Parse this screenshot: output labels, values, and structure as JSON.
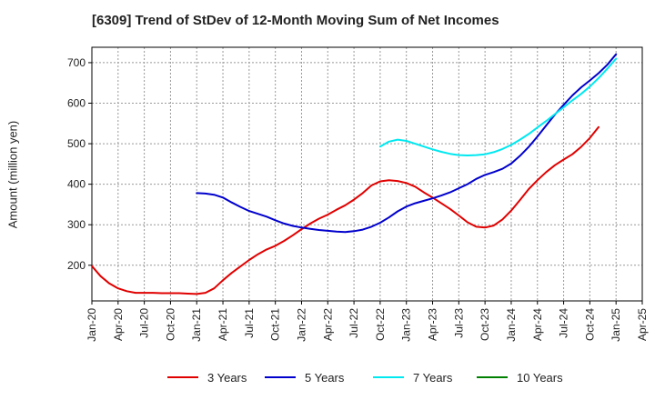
{
  "chart_data": {
    "type": "line",
    "title": "[6309]  Trend of StDev of 12-Month Moving Sum of Net Incomes",
    "ylabel": "Amount (million yen)",
    "xlabel": "",
    "x_ticks": [
      "Jan-20",
      "Apr-20",
      "Jul-20",
      "Oct-20",
      "Jan-21",
      "Apr-21",
      "Jul-21",
      "Oct-21",
      "Jan-22",
      "Apr-22",
      "Jul-22",
      "Oct-22",
      "Jan-23",
      "Apr-23",
      "Jul-23",
      "Oct-23",
      "Jan-24",
      "Apr-24",
      "Jul-24",
      "Oct-24",
      "Jan-25",
      "Apr-25"
    ],
    "y_ticks": [
      200,
      300,
      400,
      500,
      600,
      700
    ],
    "ylim": [
      112,
      738
    ],
    "grid": true,
    "legend_position": "bottom",
    "series": [
      {
        "name": "3 Years",
        "color": "#e00000",
        "points": [
          [
            "Jan-20",
            198
          ],
          [
            "Feb-20",
            173
          ],
          [
            "Mar-20",
            155
          ],
          [
            "Apr-20",
            143
          ],
          [
            "May-20",
            136
          ],
          [
            "Jun-20",
            132
          ],
          [
            "Jul-20",
            132
          ],
          [
            "Aug-20",
            132
          ],
          [
            "Sep-20",
            131
          ],
          [
            "Oct-20",
            131
          ],
          [
            "Nov-20",
            131
          ],
          [
            "Dec-20",
            130
          ],
          [
            "Jan-21",
            129
          ],
          [
            "Feb-21",
            132
          ],
          [
            "Mar-21",
            143
          ],
          [
            "Apr-21",
            163
          ],
          [
            "May-21",
            181
          ],
          [
            "Jun-21",
            197
          ],
          [
            "Jul-21",
            213
          ],
          [
            "Aug-21",
            227
          ],
          [
            "Sep-21",
            239
          ],
          [
            "Oct-21",
            248
          ],
          [
            "Nov-21",
            260
          ],
          [
            "Dec-21",
            274
          ],
          [
            "Jan-22",
            289
          ],
          [
            "Feb-22",
            303
          ],
          [
            "Mar-22",
            315
          ],
          [
            "Apr-22",
            325
          ],
          [
            "May-22",
            337
          ],
          [
            "Jun-22",
            348
          ],
          [
            "Jul-22",
            362
          ],
          [
            "Aug-22",
            378
          ],
          [
            "Sep-22",
            397
          ],
          [
            "Oct-22",
            407
          ],
          [
            "Nov-22",
            410
          ],
          [
            "Dec-22",
            408
          ],
          [
            "Jan-23",
            403
          ],
          [
            "Feb-23",
            394
          ],
          [
            "Mar-23",
            380
          ],
          [
            "Apr-23",
            367
          ],
          [
            "May-23",
            353
          ],
          [
            "Jun-23",
            339
          ],
          [
            "Jul-23",
            323
          ],
          [
            "Aug-23",
            306
          ],
          [
            "Sep-23",
            295
          ],
          [
            "Oct-23",
            293
          ],
          [
            "Nov-23",
            298
          ],
          [
            "Dec-23",
            313
          ],
          [
            "Jan-24",
            335
          ],
          [
            "Feb-24",
            361
          ],
          [
            "Mar-24",
            388
          ],
          [
            "Apr-24",
            410
          ],
          [
            "May-24",
            430
          ],
          [
            "Jun-24",
            447
          ],
          [
            "Jul-24",
            461
          ],
          [
            "Aug-24",
            474
          ],
          [
            "Sep-24",
            492
          ],
          [
            "Oct-24",
            514
          ],
          [
            "Nov-24",
            541
          ]
        ]
      },
      {
        "name": "5 Years",
        "color": "#0000cc",
        "points": [
          [
            "Jan-21",
            378
          ],
          [
            "Feb-21",
            377
          ],
          [
            "Mar-21",
            374
          ],
          [
            "Apr-21",
            367
          ],
          [
            "May-21",
            355
          ],
          [
            "Jun-21",
            344
          ],
          [
            "Jul-21",
            334
          ],
          [
            "Aug-21",
            327
          ],
          [
            "Sep-21",
            320
          ],
          [
            "Oct-21",
            311
          ],
          [
            "Nov-21",
            303
          ],
          [
            "Dec-21",
            297
          ],
          [
            "Jan-22",
            293
          ],
          [
            "Feb-22",
            290
          ],
          [
            "Mar-22",
            287
          ],
          [
            "Apr-22",
            285
          ],
          [
            "May-22",
            283
          ],
          [
            "Jun-22",
            282
          ],
          [
            "Jul-22",
            284
          ],
          [
            "Aug-22",
            288
          ],
          [
            "Sep-22",
            295
          ],
          [
            "Oct-22",
            305
          ],
          [
            "Nov-22",
            318
          ],
          [
            "Dec-22",
            333
          ],
          [
            "Jan-23",
            345
          ],
          [
            "Feb-23",
            353
          ],
          [
            "Mar-23",
            359
          ],
          [
            "Apr-23",
            365
          ],
          [
            "May-23",
            372
          ],
          [
            "Jun-23",
            380
          ],
          [
            "Jul-23",
            390
          ],
          [
            "Aug-23",
            400
          ],
          [
            "Sep-23",
            413
          ],
          [
            "Oct-23",
            423
          ],
          [
            "Nov-23",
            430
          ],
          [
            "Dec-23",
            438
          ],
          [
            "Jan-24",
            451
          ],
          [
            "Feb-24",
            470
          ],
          [
            "Mar-24",
            492
          ],
          [
            "Apr-24",
            518
          ],
          [
            "May-24",
            545
          ],
          [
            "Jun-24",
            572
          ],
          [
            "Jul-24",
            596
          ],
          [
            "Aug-24",
            619
          ],
          [
            "Sep-24",
            639
          ],
          [
            "Oct-24",
            656
          ],
          [
            "Nov-24",
            674
          ],
          [
            "Dec-24",
            695
          ],
          [
            "Jan-25",
            721
          ]
        ]
      },
      {
        "name": "7 Years",
        "color": "#00e8f0",
        "points": [
          [
            "Oct-22",
            493
          ],
          [
            "Nov-22",
            505
          ],
          [
            "Dec-22",
            510
          ],
          [
            "Jan-23",
            507
          ],
          [
            "Feb-23",
            500
          ],
          [
            "Mar-23",
            493
          ],
          [
            "Apr-23",
            486
          ],
          [
            "May-23",
            480
          ],
          [
            "Jun-23",
            475
          ],
          [
            "Jul-23",
            472
          ],
          [
            "Aug-23",
            471
          ],
          [
            "Sep-23",
            472
          ],
          [
            "Oct-23",
            474
          ],
          [
            "Nov-23",
            479
          ],
          [
            "Dec-23",
            487
          ],
          [
            "Jan-24",
            497
          ],
          [
            "Feb-24",
            510
          ],
          [
            "Mar-24",
            524
          ],
          [
            "Apr-24",
            540
          ],
          [
            "May-24",
            556
          ],
          [
            "Jun-24",
            573
          ],
          [
            "Jul-24",
            590
          ],
          [
            "Aug-24",
            607
          ],
          [
            "Sep-24",
            623
          ],
          [
            "Oct-24",
            641
          ],
          [
            "Nov-24",
            662
          ],
          [
            "Dec-24",
            685
          ],
          [
            "Jan-25",
            710
          ]
        ]
      },
      {
        "name": "10 Years",
        "color": "#008000",
        "points": []
      }
    ]
  }
}
